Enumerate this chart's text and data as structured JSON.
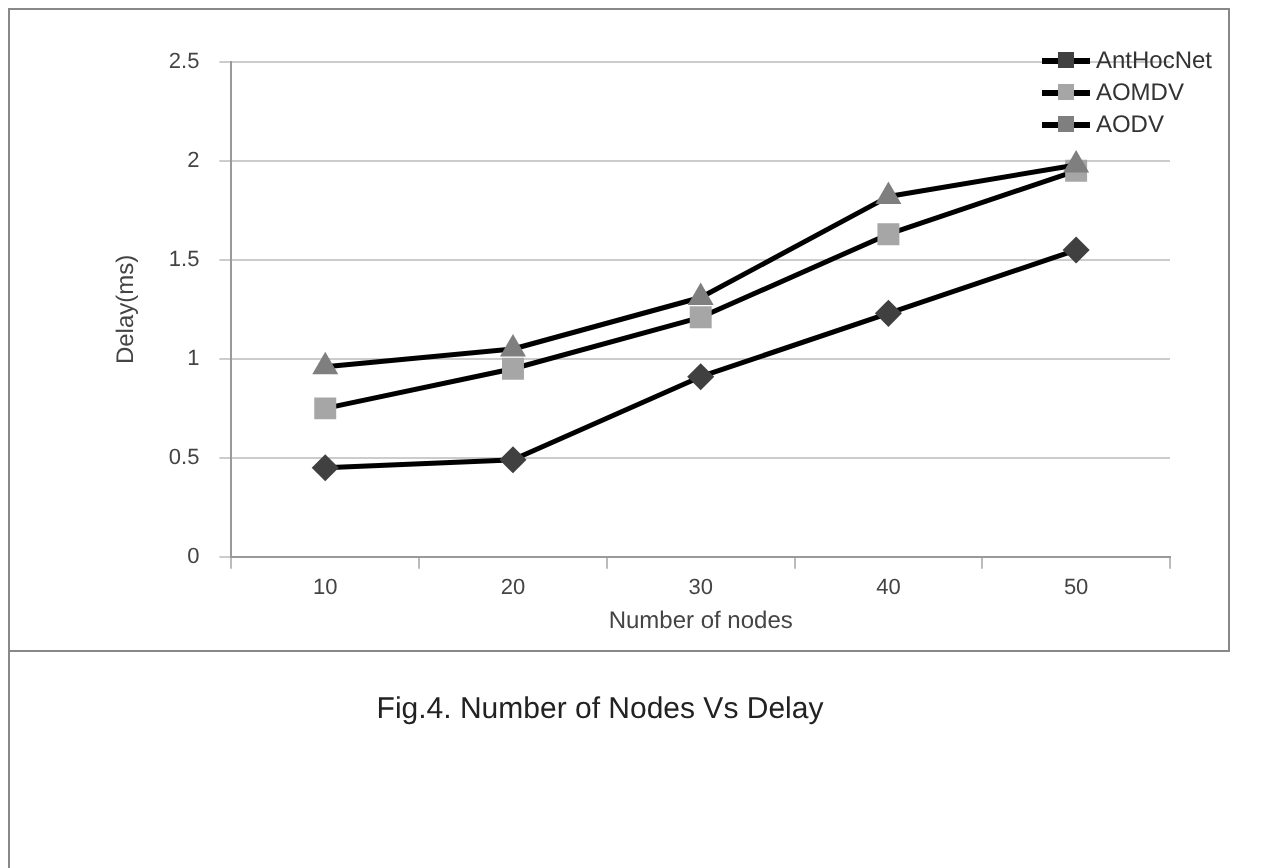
{
  "chart_data": {
    "type": "line",
    "xlabel": "Number of nodes",
    "ylabel": "Delay(ms)",
    "categories": [
      "10",
      "20",
      "30",
      "40",
      "50"
    ],
    "ylim": [
      0,
      2.5
    ],
    "yticks": [
      0,
      0.5,
      1,
      1.5,
      2,
      2.5
    ],
    "grid": "y",
    "legend": "top right",
    "series": [
      {
        "name": "AntHocNet",
        "color": "#404040",
        "marker": "diamond",
        "values": [
          0.45,
          0.49,
          0.91,
          1.23,
          1.55
        ]
      },
      {
        "name": "AOMDV",
        "color": "#a6a6a6",
        "marker": "square",
        "values": [
          0.75,
          0.95,
          1.21,
          1.63,
          1.95
        ]
      },
      {
        "name": "AODV",
        "color": "#7f7f7f",
        "marker": "triangle",
        "values": [
          0.96,
          1.05,
          1.31,
          1.82,
          1.98
        ]
      }
    ],
    "annotations": [
      "Fig.4. Number of Nodes Vs Delay"
    ]
  }
}
